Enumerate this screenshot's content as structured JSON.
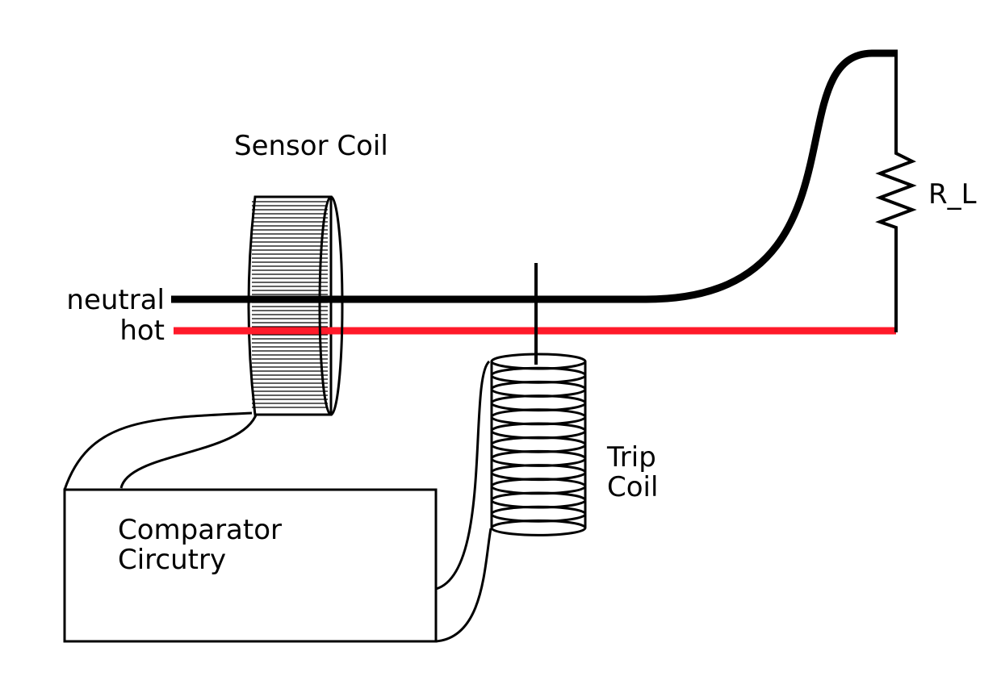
{
  "labels": {
    "sensor_coil": "Sensor Coil",
    "neutral": "neutral",
    "hot": "hot",
    "load": "R_L",
    "trip_coil_line1": "Trip",
    "trip_coil_line2": "Coil",
    "comparator_line1": "Comparator",
    "comparator_line2": "Circutry"
  },
  "colors": {
    "neutral_wire": "#000000",
    "hot_wire": "#ff1a2a",
    "outline": "#000000"
  }
}
